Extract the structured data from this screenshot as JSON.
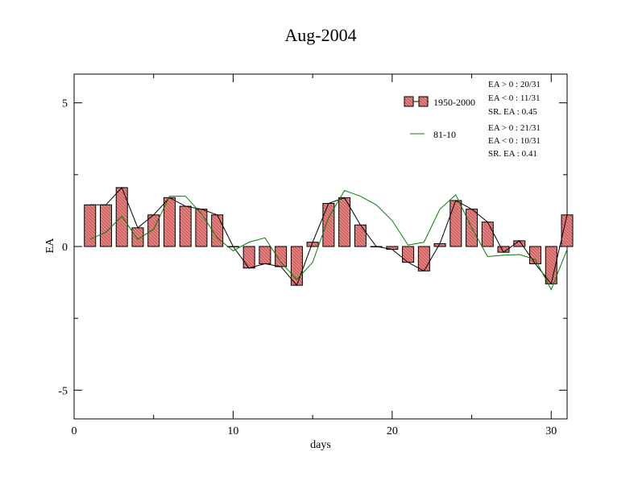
{
  "chart_data": {
    "type": "bar",
    "title": "Aug-2004",
    "xlabel": "days",
    "ylabel": "EA",
    "xlim": [
      0,
      31
    ],
    "ylim": [
      -6,
      6
    ],
    "x_ticks": [
      0,
      10,
      20,
      30
    ],
    "y_ticks": [
      -5,
      0,
      5
    ],
    "x_tick_labels": [
      "0",
      "10",
      "20",
      "30"
    ],
    "y_tick_labels": [
      "-5",
      "0",
      "5"
    ],
    "grid": false,
    "legend_position": "top-right",
    "days": [
      1,
      2,
      3,
      4,
      5,
      6,
      7,
      8,
      9,
      10,
      11,
      12,
      13,
      14,
      15,
      16,
      17,
      18,
      19,
      20,
      21,
      22,
      23,
      24,
      25,
      26,
      27,
      28,
      29,
      30,
      31
    ],
    "series": [
      {
        "name": "1950-2000",
        "kind": "bar",
        "fill": "#f08080",
        "values": [
          1.45,
          1.45,
          2.05,
          0.65,
          1.1,
          1.7,
          1.4,
          1.3,
          1.1,
          0.0,
          -0.75,
          -0.6,
          -0.7,
          -1.35,
          0.15,
          1.5,
          1.7,
          0.75,
          0.0,
          -0.1,
          -0.55,
          -0.85,
          0.1,
          1.6,
          1.3,
          0.85,
          -0.2,
          0.2,
          -0.6,
          -1.3,
          1.1
        ],
        "stats": [
          "EA > 0 : 20/31",
          "EA < 0 : 11/31",
          "SR. EA :  0.45"
        ]
      },
      {
        "name": "81-10",
        "kind": "line",
        "color": "#008000",
        "values": [
          0.25,
          0.5,
          1.05,
          0.25,
          0.6,
          1.75,
          1.75,
          1.15,
          0.3,
          -0.15,
          0.15,
          0.3,
          -0.55,
          -1.15,
          -0.55,
          1.0,
          1.95,
          1.75,
          1.45,
          0.9,
          0.05,
          0.15,
          1.3,
          1.8,
          0.65,
          -0.35,
          -0.3,
          -0.28,
          -0.45,
          -1.5,
          -0.1
        ],
        "stats": [
          "EA > 0 : 21/31",
          "EA < 0 : 10/31",
          "SR. EA :  0.41"
        ]
      }
    ]
  }
}
